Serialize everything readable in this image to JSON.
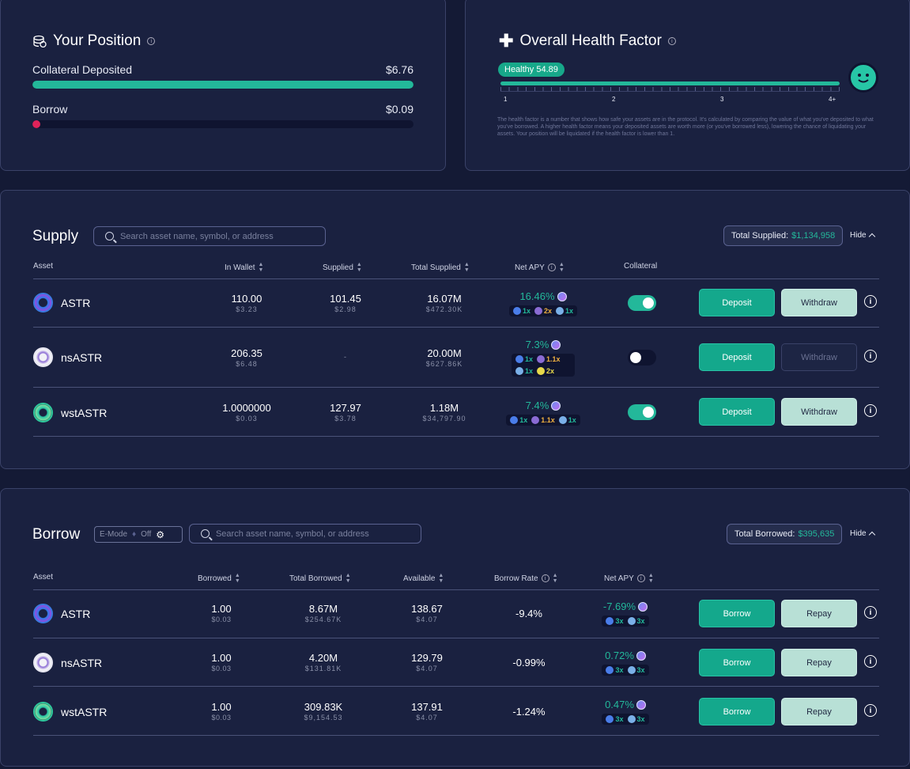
{
  "position": {
    "title": "Your Position",
    "collateral_label": "Collateral Deposited",
    "collateral_value": "$6.76",
    "collateral_fill": 1.0,
    "borrow_label": "Borrow",
    "borrow_value": "$0.09",
    "borrow_fill": 0.02
  },
  "health": {
    "title": "Overall Health Factor",
    "badge_status": "Healthy",
    "badge_value": "54.89",
    "ticks": [
      "1",
      "2",
      "3",
      "4+"
    ],
    "description": "The health factor is a number that shows how safe your assets are in the protocol. It's calculated by comparing the value of what you've deposited to what you've borrowed. A higher health factor means your deposited assets are worth more (or you've borrowed less), lowering the chance of liquidating your assets. Your position will be liquidated if the health factor is lower than 1."
  },
  "supply": {
    "title": "Supply",
    "search_placeholder": "Search asset name, symbol, or address",
    "total_label": "Total Supplied:",
    "total_value": "$1,134,958",
    "hide_label": "Hide",
    "columns": [
      "Asset",
      "In Wallet",
      "Supplied",
      "Total Supplied",
      "Net APY",
      "Collateral"
    ],
    "deposit_label": "Deposit",
    "withdraw_label": "Withdraw",
    "rows": [
      {
        "asset": "ASTR",
        "wallet": "110.00",
        "wallet_usd": "$3.23",
        "supplied": "101.45",
        "supplied_usd": "$2.98",
        "total": "16.07M",
        "total_usd": "$472.30K",
        "apy": "16.46%",
        "mults": [
          "1x",
          "2x",
          "1x"
        ]
      },
      {
        "asset": "nsASTR",
        "wallet": "206.35",
        "wallet_usd": "$6.48",
        "supplied": "-",
        "total": "20.00M",
        "total_usd": "$627.86K",
        "apy": "7.3%",
        "mults": [
          "1x",
          "1.1x",
          "1x",
          "2x"
        ]
      },
      {
        "asset": "wstASTR",
        "wallet": "1.0000000",
        "wallet_usd": "$0.03",
        "supplied": "127.97",
        "supplied_usd": "$3.78",
        "total": "1.18M",
        "total_usd": "$34,797.90",
        "apy": "7.4%",
        "mults": [
          "1x",
          "1.1x",
          "1x"
        ]
      }
    ]
  },
  "borrow": {
    "title": "Borrow",
    "emode_label": "E-Mode",
    "emode_state": "Off",
    "search_placeholder": "Search asset name, symbol, or address",
    "total_label": "Total Borrowed:",
    "total_value": "$395,635",
    "hide_label": "Hide",
    "columns": [
      "Asset",
      "Borrowed",
      "Total Borrowed",
      "Available",
      "Borrow Rate",
      "Net APY"
    ],
    "borrow_label": "Borrow",
    "repay_label": "Repay",
    "rows": [
      {
        "asset": "ASTR",
        "borrowed": "1.00",
        "borrowed_usd": "$0.03",
        "total": "8.67M",
        "total_usd": "$254.67K",
        "available": "138.67",
        "available_usd": "$4.07",
        "rate": "-9.4%",
        "apy": "-7.69%",
        "mults": [
          "3x",
          "3x"
        ]
      },
      {
        "asset": "nsASTR",
        "borrowed": "1.00",
        "borrowed_usd": "$0.03",
        "total": "4.20M",
        "total_usd": "$131.81K",
        "available": "129.79",
        "available_usd": "$4.07",
        "rate": "-0.99%",
        "apy": "0.72%",
        "mults": [
          "3x",
          "3x"
        ]
      },
      {
        "asset": "wstASTR",
        "borrowed": "1.00",
        "borrowed_usd": "$0.03",
        "total": "309.83K",
        "total_usd": "$9,154.53",
        "available": "137.91",
        "available_usd": "$4.07",
        "rate": "-1.24%",
        "apy": "0.47%",
        "mults": [
          "3x",
          "3x"
        ]
      }
    ]
  },
  "colors": {
    "accent": "#23b89a",
    "negative": "#e0546a",
    "borrow_bar": "#e0235a",
    "background": "#141a35"
  }
}
